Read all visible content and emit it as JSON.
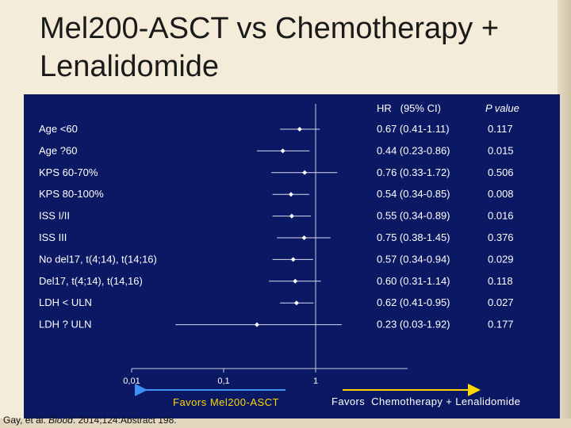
{
  "slide": {
    "title": "Mel200-ASCT vs Chemotherapy + Lenalidomide",
    "citation_authors": "Gay, et al. ",
    "citation_journal": "Blood",
    "citation_rest": ". 2014;124:Abstract 198."
  },
  "colors": {
    "panel_bg": "#0b1863",
    "text": "#ffffff",
    "arrow": "#3f8ff5",
    "arrow_right": "#ffd700",
    "favors_left_text": "#ffd700"
  },
  "chart_data": {
    "type": "forest",
    "column_headers": {
      "hr": "HR   (95% CI)",
      "p": "P value"
    },
    "x_scale": "log",
    "xlim": [
      0.01,
      10
    ],
    "reference_line": 1,
    "x_ticks": [
      {
        "value": 0.01,
        "label": "0,01"
      },
      {
        "value": 0.1,
        "label": "0,1"
      },
      {
        "value": 1,
        "label": "1"
      }
    ],
    "rows": [
      {
        "label": "Age <60",
        "hr": 0.67,
        "ci_low": 0.41,
        "ci_high": 1.11,
        "hr_text": "0.67 (0.41-1.11)",
        "p": "0.117"
      },
      {
        "label": "Age ?60",
        "hr": 0.44,
        "ci_low": 0.23,
        "ci_high": 0.86,
        "hr_text": "0.44 (0.23-0.86)",
        "p": "0.015"
      },
      {
        "label": "KPS 60-70%",
        "hr": 0.76,
        "ci_low": 0.33,
        "ci_high": 1.72,
        "hr_text": "0.76 (0.33-1.72)",
        "p": "0.506"
      },
      {
        "label": "KPS 80-100%",
        "hr": 0.54,
        "ci_low": 0.34,
        "ci_high": 0.85,
        "hr_text": "0.54 (0.34-0.85)",
        "p": "0.008"
      },
      {
        "label": "ISS I/II",
        "hr": 0.55,
        "ci_low": 0.34,
        "ci_high": 0.89,
        "hr_text": "0.55 (0.34-0.89)",
        "p": "0.016"
      },
      {
        "label": "ISS III",
        "hr": 0.75,
        "ci_low": 0.38,
        "ci_high": 1.45,
        "hr_text": "0.75 (0.38-1.45)",
        "p": "0.376"
      },
      {
        "label": "No del17, t(4;14), t(14;16)",
        "hr": 0.57,
        "ci_low": 0.34,
        "ci_high": 0.94,
        "hr_text": "0.57 (0.34-0.94)",
        "p": "0.029"
      },
      {
        "label": "Del17, t(4;14), t(14,16)",
        "hr": 0.6,
        "ci_low": 0.31,
        "ci_high": 1.14,
        "hr_text": "0.60 (0.31-1.14)",
        "p": "0.118"
      },
      {
        "label": "LDH < ULN",
        "hr": 0.62,
        "ci_low": 0.41,
        "ci_high": 0.95,
        "hr_text": "0.62 (0.41-0.95)",
        "p": "0.027"
      },
      {
        "label": "LDH ? ULN",
        "hr": 0.23,
        "ci_low": 0.03,
        "ci_high": 1.92,
        "hr_text": "0.23 (0.03-1.92)",
        "p": "0.177"
      }
    ],
    "favors_left": "Favors Mel200-ASCT",
    "favors_right": "Favors  Chemotherapy + Lenalidomide"
  }
}
